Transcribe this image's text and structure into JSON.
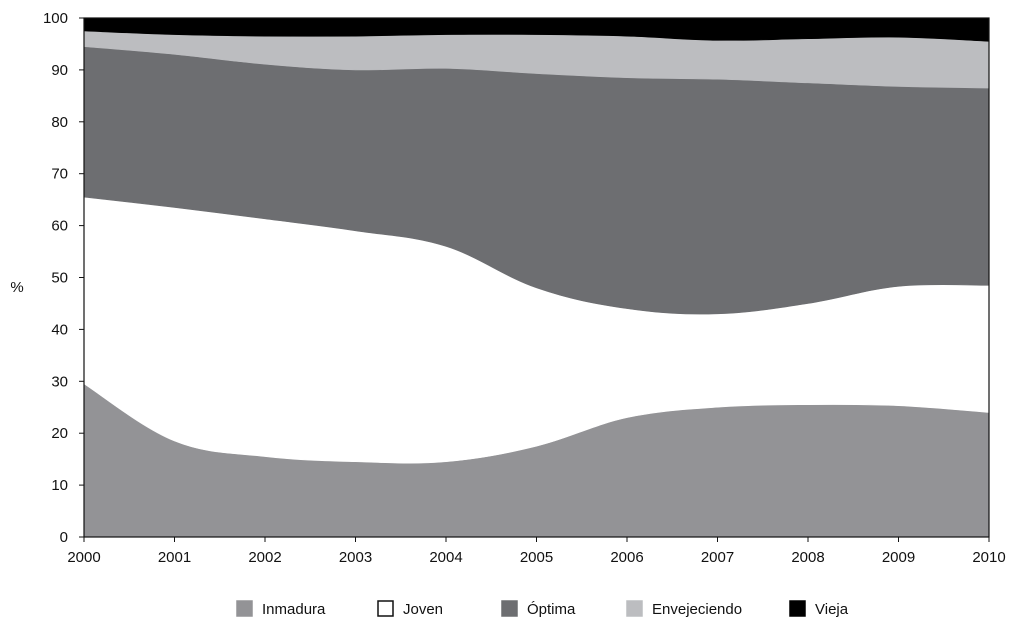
{
  "chart_data": {
    "type": "area",
    "stacked": true,
    "title": "",
    "xlabel": "",
    "ylabel": "%",
    "ylim": [
      0,
      100
    ],
    "yticks": [
      0,
      10,
      20,
      30,
      40,
      50,
      60,
      70,
      80,
      90,
      100
    ],
    "x": [
      2000,
      2001,
      2002,
      2003,
      2004,
      2005,
      2006,
      2007,
      2008,
      2009,
      2010
    ],
    "x_tick_labels": [
      "2000",
      "2001",
      "2002",
      "2003",
      "2004",
      "2005",
      "2006",
      "2007",
      "2008",
      "2009",
      "2010"
    ],
    "legend_position": "bottom",
    "grid": false,
    "series": [
      {
        "name": "Inmadura",
        "color": "#939396",
        "swatch_border": "#939396",
        "values": [
          29.5,
          18.5,
          15.5,
          14.5,
          14.5,
          17.5,
          23.0,
          25.0,
          25.5,
          25.3,
          24.0
        ]
      },
      {
        "name": "Joven",
        "color": "#ffffff",
        "swatch_border": "#111111",
        "values": [
          36.0,
          45.0,
          45.8,
          44.5,
          41.5,
          30.5,
          21.0,
          18.0,
          19.5,
          23.0,
          24.5
        ]
      },
      {
        "name": "Óptima",
        "color": "#6d6e71",
        "swatch_border": "#6d6e71",
        "values": [
          29.0,
          29.5,
          29.8,
          31.0,
          34.3,
          41.3,
          44.5,
          45.2,
          42.5,
          38.5,
          38.0
        ]
      },
      {
        "name": "Envejeciendo",
        "color": "#bcbdc0",
        "swatch_border": "#bcbdc0",
        "values": [
          3.0,
          3.8,
          5.4,
          6.5,
          6.5,
          7.5,
          8.0,
          7.5,
          8.5,
          9.5,
          9.0
        ]
      },
      {
        "name": "Vieja",
        "color": "#000000",
        "swatch_border": "#000000",
        "values": [
          2.5,
          3.2,
          3.5,
          3.5,
          3.2,
          3.2,
          3.5,
          4.3,
          4.0,
          3.7,
          4.5
        ]
      }
    ]
  }
}
